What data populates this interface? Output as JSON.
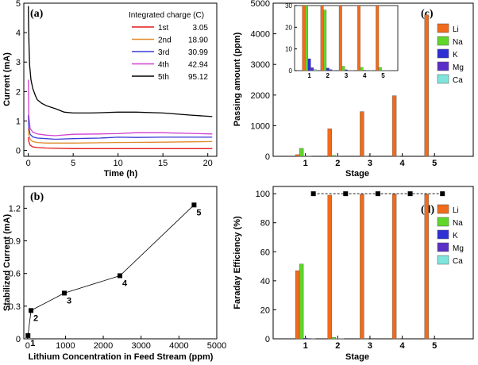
{
  "chart_data": [
    {
      "id": "a",
      "panel_label": "(a)",
      "type": "line",
      "xlabel": "Time (h)",
      "ylabel": "Current (mA)",
      "xlim": [
        -0.5,
        21
      ],
      "ylim": [
        -0.2,
        5
      ],
      "xticks": [
        0,
        5,
        10,
        15,
        20
      ],
      "yticks": [
        0,
        1,
        2,
        3,
        4,
        5
      ],
      "legend_title": "Integrated charge (C)",
      "legend_position": "top-right",
      "series": [
        {
          "name": "1st",
          "value": "3.05",
          "color": "#e41a1c",
          "x": [
            0,
            0.05,
            0.2,
            0.5,
            1,
            2,
            5,
            10,
            15,
            20.5
          ],
          "y": [
            0.45,
            0.3,
            0.18,
            0.12,
            0.1,
            0.08,
            0.06,
            0.06,
            0.06,
            0.06
          ]
        },
        {
          "name": "2nd",
          "value": "18.90",
          "color": "#e08a2c",
          "x": [
            0,
            0.05,
            0.2,
            0.5,
            1,
            2,
            5,
            10,
            15,
            20.5
          ],
          "y": [
            0.75,
            0.55,
            0.38,
            0.3,
            0.27,
            0.25,
            0.25,
            0.27,
            0.28,
            0.3
          ]
        },
        {
          "name": "3rd",
          "value": "30.99",
          "color": "#3b3bd6",
          "x": [
            0,
            0.05,
            0.2,
            0.5,
            1,
            2,
            3,
            5,
            8,
            10,
            12,
            15,
            18,
            20.5
          ],
          "y": [
            1.2,
            0.8,
            0.55,
            0.46,
            0.42,
            0.4,
            0.38,
            0.4,
            0.42,
            0.45,
            0.44,
            0.45,
            0.45,
            0.45
          ]
        },
        {
          "name": "4th",
          "value": "42.94",
          "color": "#d23fd2",
          "x": [
            0,
            0.05,
            0.2,
            0.5,
            1,
            2,
            3,
            5,
            8,
            10,
            12,
            15,
            18,
            20.5
          ],
          "y": [
            2.4,
            1.2,
            0.75,
            0.62,
            0.56,
            0.52,
            0.5,
            0.55,
            0.56,
            0.57,
            0.6,
            0.6,
            0.58,
            0.56
          ]
        },
        {
          "name": "5th",
          "value": "95.12",
          "color": "#000000",
          "x": [
            0,
            0.03,
            0.08,
            0.15,
            0.3,
            0.5,
            0.8,
            1,
            1.5,
            2,
            3,
            4,
            5,
            7,
            10,
            12,
            15,
            18,
            20.5
          ],
          "y": [
            4.9,
            4.2,
            3.5,
            2.9,
            2.4,
            2.1,
            1.85,
            1.72,
            1.6,
            1.52,
            1.42,
            1.3,
            1.27,
            1.27,
            1.3,
            1.3,
            1.27,
            1.2,
            1.15
          ]
        }
      ]
    },
    {
      "id": "b",
      "panel_label": "(b)",
      "type": "scatter",
      "xlabel": "Lithium Concentration in Feed Stream (ppm)",
      "ylabel": "Stabilized Current (mA)",
      "xlim": [
        -100,
        5000
      ],
      "ylim": [
        0,
        1.4
      ],
      "xticks": [
        0,
        1000,
        2000,
        3000,
        4000,
        5000
      ],
      "yticks": [
        0.0,
        0.3,
        0.6,
        0.9,
        1.2
      ],
      "points": [
        {
          "label": "1",
          "x": 10,
          "y": 0.03
        },
        {
          "label": "2",
          "x": 90,
          "y": 0.26
        },
        {
          "label": "3",
          "x": 970,
          "y": 0.42
        },
        {
          "label": "4",
          "x": 2440,
          "y": 0.58
        },
        {
          "label": "5",
          "x": 4400,
          "y": 1.23
        }
      ]
    },
    {
      "id": "c",
      "panel_label": "(c)",
      "type": "bar",
      "xlabel": "Stage",
      "ylabel": "Passing amount (ppm)",
      "categories": [
        "1",
        "2",
        "3",
        "4",
        "5"
      ],
      "ylim": [
        0,
        5000
      ],
      "yticks": [
        0,
        1000,
        2000,
        3000,
        4000,
        5000
      ],
      "legend_position": "right",
      "series": [
        {
          "name": "Li",
          "color": "#f06b1c",
          "values": [
            55,
            900,
            1460,
            1980,
            4620
          ]
        },
        {
          "name": "Na",
          "color": "#5fd62a",
          "values": [
            260,
            28,
            3,
            2,
            2
          ]
        },
        {
          "name": "K",
          "color": "#2f2fd6",
          "values": [
            5,
            2,
            1,
            1,
            0
          ]
        },
        {
          "name": "Mg",
          "color": "#5a2fc8",
          "values": [
            2,
            1,
            0,
            0,
            0
          ]
        },
        {
          "name": "Ca",
          "color": "#7fe5dc",
          "values": [
            1,
            0,
            0,
            0,
            0
          ]
        }
      ],
      "inset": {
        "ylim": [
          0,
          30
        ],
        "yticks": [
          0,
          10,
          20,
          30
        ],
        "categories": [
          "1",
          "2",
          "3",
          "4",
          "5"
        ],
        "values": {
          "Li": [
            30,
            30,
            30,
            30,
            30
          ],
          "Na": [
            30,
            28,
            2,
            1.5,
            1.5
          ],
          "K": [
            5.5,
            1.2,
            0.4,
            0.2,
            0.1
          ],
          "Mg": [
            1.4,
            0.5,
            0.1,
            0.1,
            0.1
          ],
          "Ca": [
            0.5,
            0.2,
            0.1,
            0.1,
            0.1
          ]
        }
      }
    },
    {
      "id": "d",
      "panel_label": "(d)",
      "type": "bar",
      "xlabel": "Stage",
      "ylabel": "Faraday Efficiency (%)",
      "categories": [
        "1",
        "2",
        "3",
        "4",
        "5"
      ],
      "ylim": [
        0,
        105
      ],
      "yticks": [
        0,
        20,
        40,
        60,
        80,
        100
      ],
      "legend_position": "right",
      "series": [
        {
          "name": "Li",
          "color": "#f06b1c",
          "values": [
            47,
            99,
            99.6,
            99.8,
            99.8
          ]
        },
        {
          "name": "Na",
          "color": "#5fd62a",
          "values": [
            51.5,
            1,
            0.3,
            0.2,
            0.2
          ]
        },
        {
          "name": "K",
          "color": "#2f2fd6",
          "values": [
            0.5,
            0.1,
            0,
            0,
            0
          ]
        },
        {
          "name": "Mg",
          "color": "#5a2fc8",
          "values": [
            0.3,
            0.1,
            0,
            0,
            0
          ]
        },
        {
          "name": "Ca",
          "color": "#7fe5dc",
          "values": [
            0.1,
            0,
            0,
            0,
            0
          ]
        }
      ],
      "total": [
        100,
        100,
        100,
        100,
        100
      ]
    }
  ]
}
